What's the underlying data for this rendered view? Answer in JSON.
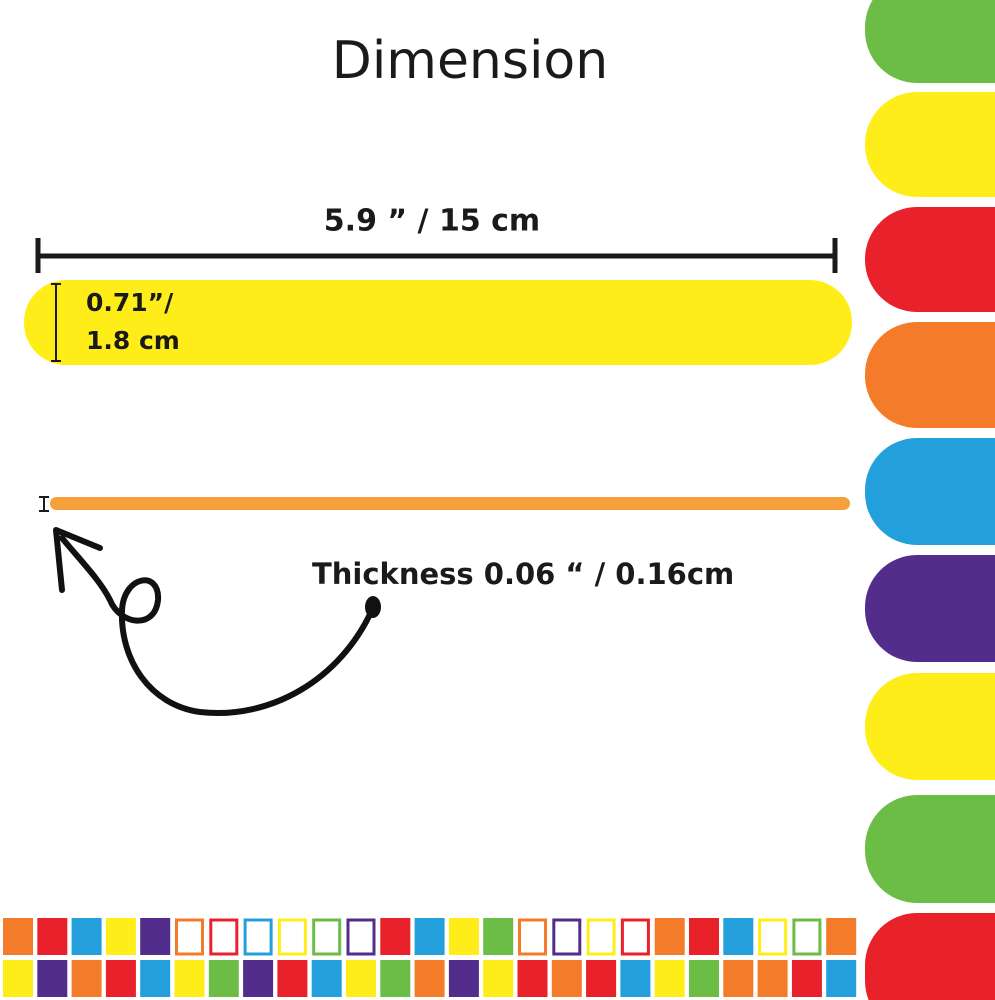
{
  "header": {
    "title": "Dimension"
  },
  "stick": {
    "length_label": "5.9 ” /  15 cm",
    "width_label_lines": [
      "0.71”/",
      "1.8 cm"
    ]
  },
  "thickness": {
    "label": "Thickness 0.06 “ / 0.16cm"
  }
}
